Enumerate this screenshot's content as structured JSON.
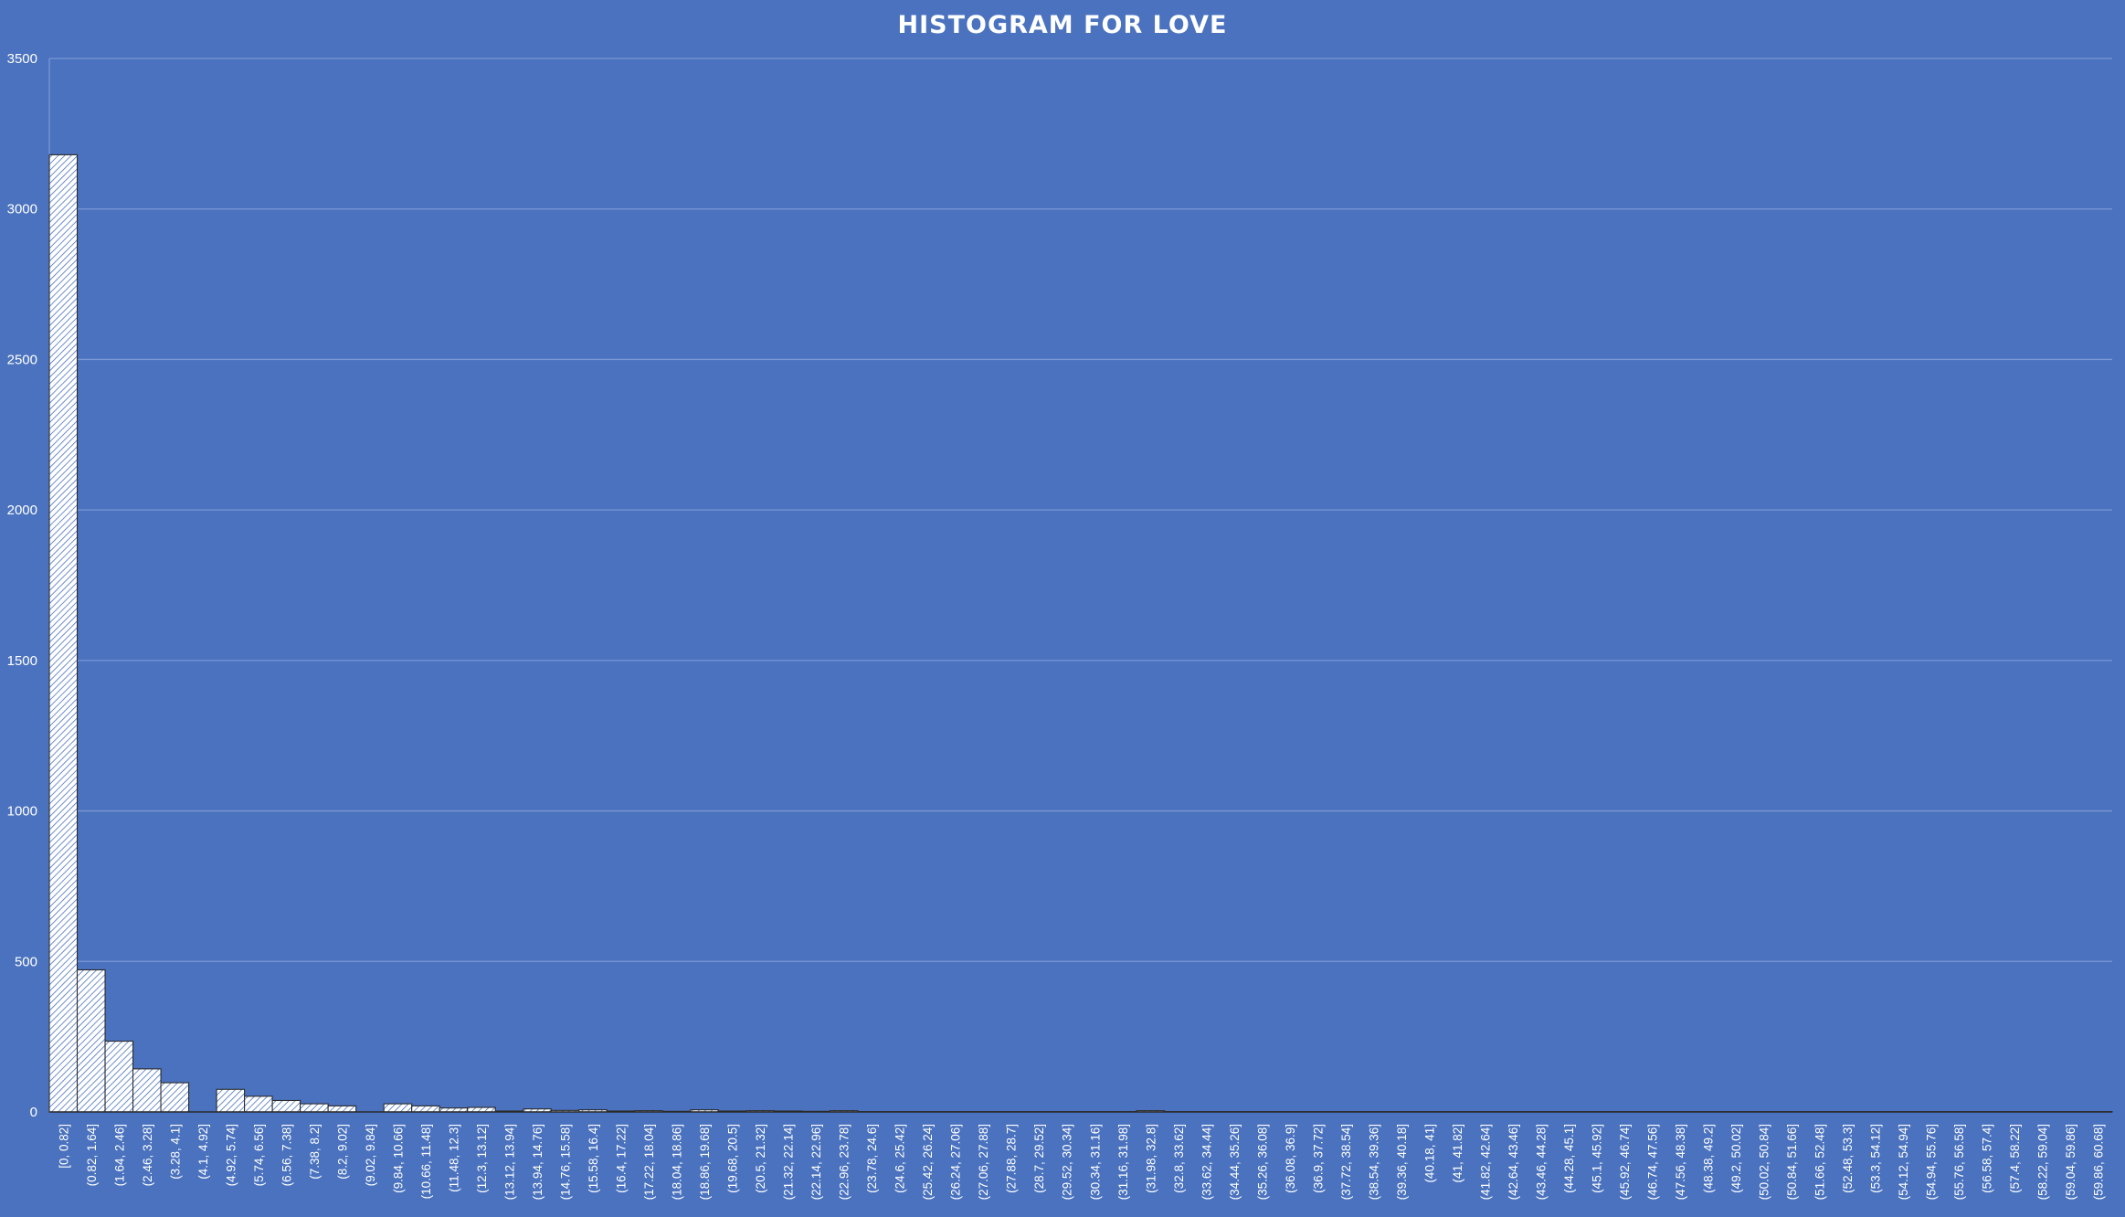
{
  "chart_data": {
    "type": "bar",
    "title": "HISTOGRAM FOR LOVE",
    "xlabel": "",
    "ylabel": "",
    "ylim": [
      0,
      3500
    ],
    "yticks": [
      0,
      500,
      1000,
      1500,
      2000,
      2500,
      3000,
      3500
    ],
    "grid": true,
    "legend": "none",
    "colors": {
      "background": "#4a72be",
      "bar_fill": "#ffffff",
      "bar_hatch": "#4a72be",
      "bar_edge": "#2b2b2b",
      "gridline": "#7b98d6",
      "text": "#ffffff"
    },
    "categories": [
      "[0, 0.82]",
      "(0.82, 1.64]",
      "(1.64, 2.46]",
      "(2.46, 3.28]",
      "(3.28, 4.1]",
      "(4.1, 4.92]",
      "(4.92, 5.74]",
      "(5.74, 6.56]",
      "(6.56, 7.38]",
      "(7.38, 8.2]",
      "(8.2, 9.02]",
      "(9.02, 9.84]",
      "(9.84, 10.66]",
      "(10.66, 11.48]",
      "(11.48, 12.3]",
      "(12.3, 13.12]",
      "(13.12, 13.94]",
      "(13.94, 14.76]",
      "(14.76, 15.58]",
      "(15.58, 16.4]",
      "(16.4, 17.22]",
      "(17.22, 18.04]",
      "(18.04, 18.86]",
      "(18.86, 19.68]",
      "(19.68, 20.5]",
      "(20.5, 21.32]",
      "(21.32, 22.14]",
      "(22.14, 22.96]",
      "(22.96, 23.78]",
      "(23.78, 24.6]",
      "(24.6, 25.42]",
      "(25.42, 26.24]",
      "(26.24, 27.06]",
      "(27.06, 27.88]",
      "(27.88, 28.7]",
      "(28.7, 29.52]",
      "(29.52, 30.34]",
      "(30.34, 31.16]",
      "(31.16, 31.98]",
      "(31.98, 32.8]",
      "(32.8, 33.62]",
      "(33.62, 34.44]",
      "(34.44, 35.26]",
      "(35.26, 36.08]",
      "(36.08, 36.9]",
      "(36.9, 37.72]",
      "(37.72, 38.54]",
      "(38.54, 39.36]",
      "(39.36, 40.18]",
      "(40.18, 41]",
      "(41, 41.82]",
      "(41.82, 42.64]",
      "(42.64, 43.46]",
      "(43.46, 44.28]",
      "(44.28, 45.1]",
      "(45.1, 45.92]",
      "(45.92, 46.74]",
      "(46.74, 47.56]",
      "(47.56, 48.38]",
      "(48.38, 49.2]",
      "(49.2, 50.02]",
      "(50.02, 50.84]",
      "(50.84, 51.66]",
      "(51.66, 52.48]",
      "(52.48, 53.3]",
      "(53.3, 54.12]",
      "(54.12, 54.94]",
      "(54.94, 55.76]",
      "(55.76, 56.58]",
      "(56.58, 57.4]",
      "(57.4, 58.22]",
      "(58.22, 59.04]",
      "(59.04, 59.86]",
      "(59.86, 60.68]"
    ],
    "values": [
      3180,
      472,
      235,
      143,
      97,
      0,
      75,
      52,
      38,
      27,
      20,
      0,
      27,
      20,
      13,
      15,
      3,
      10,
      5,
      7,
      3,
      4,
      2,
      7,
      3,
      4,
      3,
      2,
      4,
      1,
      1,
      1,
      1,
      1,
      1,
      1,
      1,
      1,
      1,
      4,
      1,
      1,
      1,
      1,
      1,
      1,
      1,
      1,
      1,
      1,
      1,
      1,
      1,
      1,
      1,
      1,
      1,
      1,
      1,
      1,
      1,
      1,
      1,
      1,
      1,
      1,
      1,
      1,
      1,
      1,
      1,
      1,
      1,
      1
    ]
  }
}
